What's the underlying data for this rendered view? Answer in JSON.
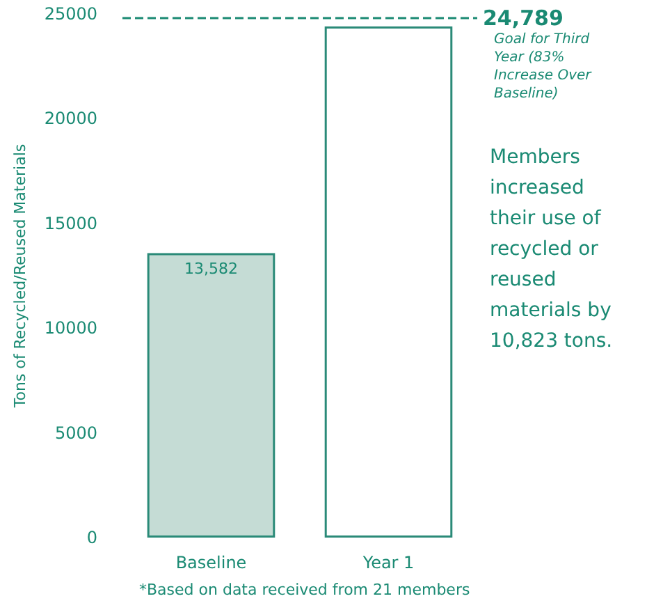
{
  "chart_data": {
    "type": "bar",
    "ylabel": "Tons of Recycled/Reused Materials",
    "categories": [
      "Baseline",
      "Year 1"
    ],
    "values": [
      13582,
      24400
    ],
    "colors": [
      "#c5dcd5",
      "#ffffff"
    ],
    "value_labels": [
      "13,582",
      null
    ],
    "ylim": [
      0,
      25000
    ],
    "yticks": [
      0,
      5000,
      10000,
      15000,
      20000,
      25000
    ],
    "grid": false,
    "ref_lines": [
      {
        "axis": "y",
        "value": 24789,
        "label": "24,789",
        "color": "#1a8a73",
        "line_style": "dashed"
      }
    ],
    "annotations": [
      "Goal for Third Year (83% Increase Over Baseline)",
      "Members increased their use of recycled or reused materials by 10,823 tons.",
      "*Based on data received from 21 members"
    ]
  }
}
